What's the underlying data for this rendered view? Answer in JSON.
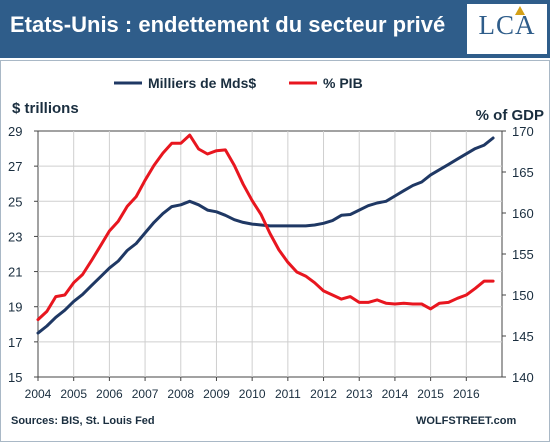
{
  "header": {
    "title": "Etats-Unis : endettement du secteur privé"
  },
  "logo": {
    "text": "LCA"
  },
  "footer": {
    "source": "Sources: BIS, St. Louis Fed",
    "credit": "WOLFSTREET.com"
  },
  "colors": {
    "header_bg": "#2f5d8a",
    "series_debt": "#1f3864",
    "series_pib": "#e8161f"
  },
  "chart_data": {
    "type": "line",
    "title": "",
    "ylabel_left": "$ trillions",
    "ylabel_right": "% of GDP",
    "ylim_left": [
      15,
      29
    ],
    "yticks_left": [
      "15",
      "17",
      "19",
      "21",
      "23",
      "25",
      "27",
      "29"
    ],
    "ylim_right": [
      140,
      170
    ],
    "yticks_right": [
      "140",
      "145",
      "150",
      "155",
      "160",
      "165",
      "170"
    ],
    "xlim": [
      2004,
      2017
    ],
    "xticks": [
      "2004",
      "2005",
      "2006",
      "2007",
      "2008",
      "2009",
      "2010",
      "2011",
      "2012",
      "2013",
      "2014",
      "2015",
      "2016"
    ],
    "grid": true,
    "legend": "top-center",
    "series": [
      {
        "name": "Milliers de Mds$",
        "axis": "left",
        "color": "#1f3864",
        "x": [
          2004.0,
          2004.25,
          2004.5,
          2004.75,
          2005.0,
          2005.25,
          2005.5,
          2005.75,
          2006.0,
          2006.25,
          2006.5,
          2006.75,
          2007.0,
          2007.25,
          2007.5,
          2007.75,
          2008.0,
          2008.25,
          2008.5,
          2008.75,
          2009.0,
          2009.25,
          2009.5,
          2009.75,
          2010.0,
          2010.25,
          2010.5,
          2010.75,
          2011.0,
          2011.25,
          2011.5,
          2011.75,
          2012.0,
          2012.25,
          2012.5,
          2012.75,
          2013.0,
          2013.25,
          2013.5,
          2013.75,
          2014.0,
          2014.25,
          2014.5,
          2014.75,
          2015.0,
          2015.25,
          2015.5,
          2015.75,
          2016.0,
          2016.25,
          2016.5,
          2016.75
        ],
        "values": [
          17.5,
          17.9,
          18.4,
          18.8,
          19.3,
          19.7,
          20.2,
          20.7,
          21.2,
          21.6,
          22.2,
          22.6,
          23.2,
          23.8,
          24.3,
          24.7,
          24.8,
          25.0,
          24.8,
          24.5,
          24.4,
          24.2,
          23.95,
          23.8,
          23.7,
          23.65,
          23.6,
          23.6,
          23.6,
          23.6,
          23.6,
          23.65,
          23.75,
          23.9,
          24.2,
          24.25,
          24.5,
          24.75,
          24.9,
          25.0,
          25.3,
          25.6,
          25.9,
          26.1,
          26.5,
          26.8,
          27.1,
          27.4,
          27.7,
          28.0,
          28.2,
          28.6
        ]
      },
      {
        "name": "% PIB",
        "axis": "right",
        "color": "#e8161f",
        "x": [
          2004.0,
          2004.25,
          2004.5,
          2004.75,
          2005.0,
          2005.25,
          2005.5,
          2005.75,
          2006.0,
          2006.25,
          2006.5,
          2006.75,
          2007.0,
          2007.25,
          2007.5,
          2007.75,
          2008.0,
          2008.25,
          2008.5,
          2008.75,
          2009.0,
          2009.25,
          2009.5,
          2009.75,
          2010.0,
          2010.25,
          2010.5,
          2010.75,
          2011.0,
          2011.25,
          2011.5,
          2011.75,
          2012.0,
          2012.25,
          2012.5,
          2012.75,
          2013.0,
          2013.25,
          2013.5,
          2013.75,
          2014.0,
          2014.25,
          2014.5,
          2014.75,
          2015.0,
          2015.25,
          2015.5,
          2015.75,
          2016.0,
          2016.25,
          2016.5,
          2016.75
        ],
        "values": [
          147.0,
          148.0,
          149.8,
          150.0,
          151.5,
          152.5,
          154.2,
          156.0,
          157.8,
          159.0,
          160.8,
          162.0,
          164.0,
          165.8,
          167.3,
          168.5,
          168.5,
          169.5,
          167.8,
          167.2,
          167.6,
          167.7,
          165.8,
          163.5,
          161.5,
          159.8,
          157.5,
          155.5,
          154.0,
          152.8,
          152.3,
          151.5,
          150.5,
          150.0,
          149.5,
          149.8,
          149.1,
          149.1,
          149.4,
          149.0,
          148.9,
          149.0,
          148.9,
          148.9,
          148.3,
          149.0,
          149.1,
          149.6,
          150.0,
          150.8,
          151.7,
          151.7
        ]
      }
    ]
  }
}
